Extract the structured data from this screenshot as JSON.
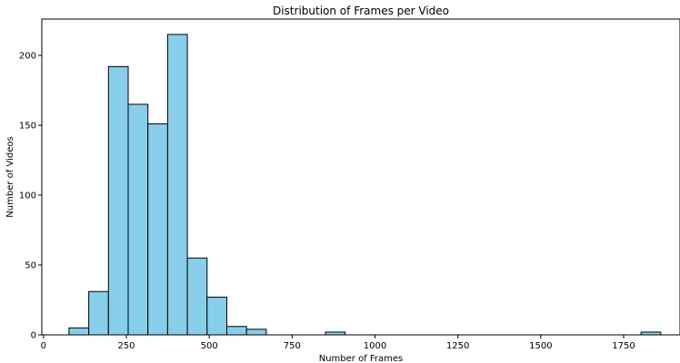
{
  "chart_data": {
    "type": "bar",
    "title": "Distribution of Frames per Video",
    "xlabel": "Number of Frames",
    "ylabel": "Number of Videos",
    "xlim": [
      -5,
      1920
    ],
    "ylim": [
      0,
      226
    ],
    "xticks": [
      0,
      250,
      500,
      750,
      1000,
      1250,
      1500,
      1750
    ],
    "yticks": [
      0,
      50,
      100,
      150,
      200
    ],
    "bin_edges": [
      77,
      136.5,
      196,
      255.5,
      315,
      374.5,
      434,
      493.5,
      553,
      612.5,
      672,
      731.5,
      791,
      850.5,
      910,
      969.5,
      1029,
      1088.5,
      1148,
      1207.5,
      1267,
      1326.5,
      1386,
      1445.5,
      1505,
      1564.5,
      1624,
      1683.5,
      1743,
      1802.5,
      1862
    ],
    "counts": [
      5,
      31,
      192,
      165,
      151,
      215,
      55,
      27,
      6,
      4,
      0,
      0,
      0,
      2,
      0,
      0,
      0,
      0,
      0,
      0,
      0,
      0,
      0,
      0,
      0,
      0,
      0,
      0,
      0,
      2
    ],
    "bar_color": "#87CEEB",
    "edge_color": "#000000",
    "grid": false,
    "legend": false
  }
}
